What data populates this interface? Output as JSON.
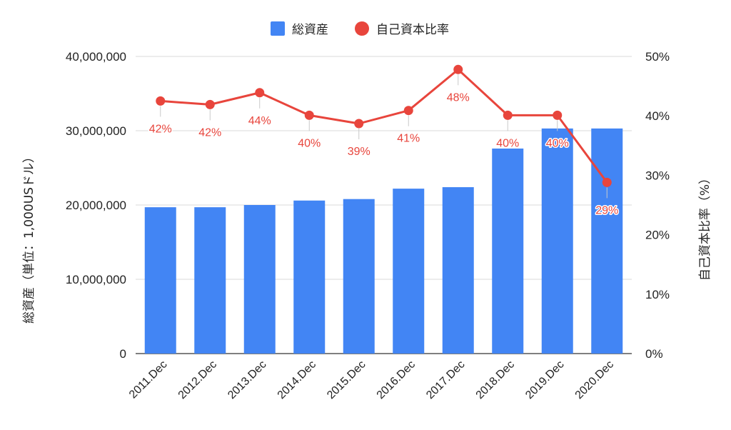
{
  "chart_data": {
    "type": "bar",
    "categories": [
      "2011.Dec",
      "2012.Dec",
      "2013.Dec",
      "2014.Dec",
      "2015.Dec",
      "2016.Dec",
      "2017.Dec",
      "2018.Dec",
      "2019.Dec",
      "2020.Dec"
    ],
    "series": [
      {
        "name": "総資産",
        "type": "bar",
        "axis": "left",
        "color": "#4285f4",
        "values": [
          19700000,
          19700000,
          20000000,
          20600000,
          20800000,
          22200000,
          22400000,
          27600000,
          30300000,
          30300000
        ]
      },
      {
        "name": "自己資本比率",
        "type": "line",
        "axis": "right",
        "color": "#e8453c",
        "values": [
          42.5,
          41.9,
          43.9,
          40.1,
          38.7,
          40.9,
          47.8,
          40.1,
          40.1,
          28.8
        ],
        "data_labels": [
          "42%",
          "42%",
          "44%",
          "40%",
          "39%",
          "41%",
          "48%",
          "40%",
          "40%",
          "29%"
        ]
      }
    ],
    "y_left": {
      "label": "総資産（単位：1,000USドル）",
      "range": [
        0,
        40000000
      ],
      "ticks": [
        0,
        10000000,
        20000000,
        30000000,
        40000000
      ],
      "tick_labels": [
        "0",
        "10,000,000",
        "20,000,000",
        "30,000,000",
        "40,000,000"
      ]
    },
    "y_right": {
      "label": "自己資本比率（%）",
      "range": [
        0,
        50
      ],
      "ticks": [
        0,
        10,
        20,
        30,
        40,
        50
      ],
      "tick_labels": [
        "0%",
        "10%",
        "20%",
        "30%",
        "40%",
        "50%"
      ]
    },
    "grid": true,
    "legend_position": "top"
  }
}
